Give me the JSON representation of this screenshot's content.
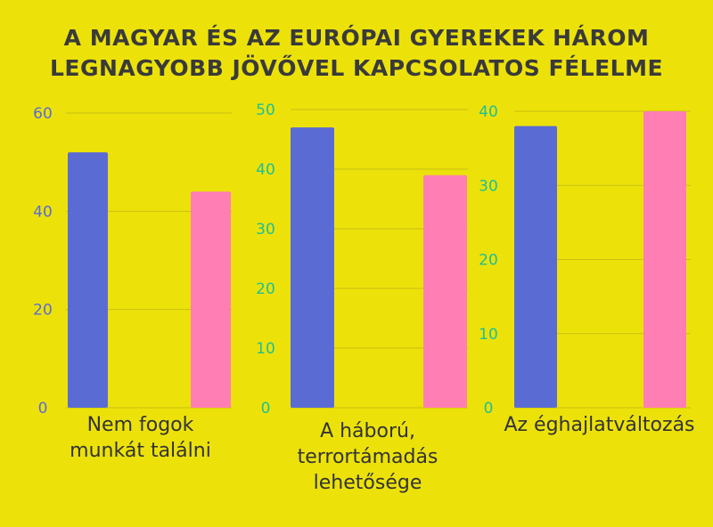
{
  "title_lines": [
    "A MAGYAR ÉS AZ EURÓPAI GYEREKEK HÁROM",
    "LEGNAGYOBB JÖVŐVEL KAPCSOLATOS FÉLELME"
  ],
  "colors": {
    "background": "#ece20a",
    "series_1": "#5b6bd4",
    "series_2": "#ff7eb3",
    "gridline": "#c9bf12",
    "tick_panel_1": "#5b6bd4",
    "tick_panel_2_3": "#1fbf94",
    "label_text": "#333333"
  },
  "chart_data": [
    {
      "type": "bar",
      "category_label": "Nem fogok munkát találni",
      "series": [
        {
          "values": [
            52
          ]
        },
        {
          "values": [
            44
          ]
        }
      ],
      "ylim": [
        0,
        60
      ],
      "yticks": [
        0,
        20,
        40,
        60
      ],
      "ytick_labels": [
        "0",
        "20",
        "40",
        "60"
      ],
      "grid": true
    },
    {
      "type": "bar",
      "category_label": "A háború, terrortámadás lehetősége",
      "series": [
        {
          "values": [
            47
          ]
        },
        {
          "values": [
            39
          ]
        }
      ],
      "ylim": [
        0,
        50
      ],
      "yticks": [
        0,
        10,
        20,
        30,
        40,
        50
      ],
      "ytick_labels": [
        "0",
        "10",
        "20",
        "30",
        "40",
        "50"
      ],
      "grid": true
    },
    {
      "type": "bar",
      "category_label": "Az éghajlatváltozás",
      "series": [
        {
          "values": [
            38
          ]
        },
        {
          "values": [
            40
          ]
        }
      ],
      "ylim": [
        0,
        40
      ],
      "yticks": [
        0,
        10,
        20,
        30,
        40
      ],
      "ytick_labels": [
        "0",
        "10",
        "20",
        "30",
        "40"
      ],
      "grid": true
    }
  ]
}
